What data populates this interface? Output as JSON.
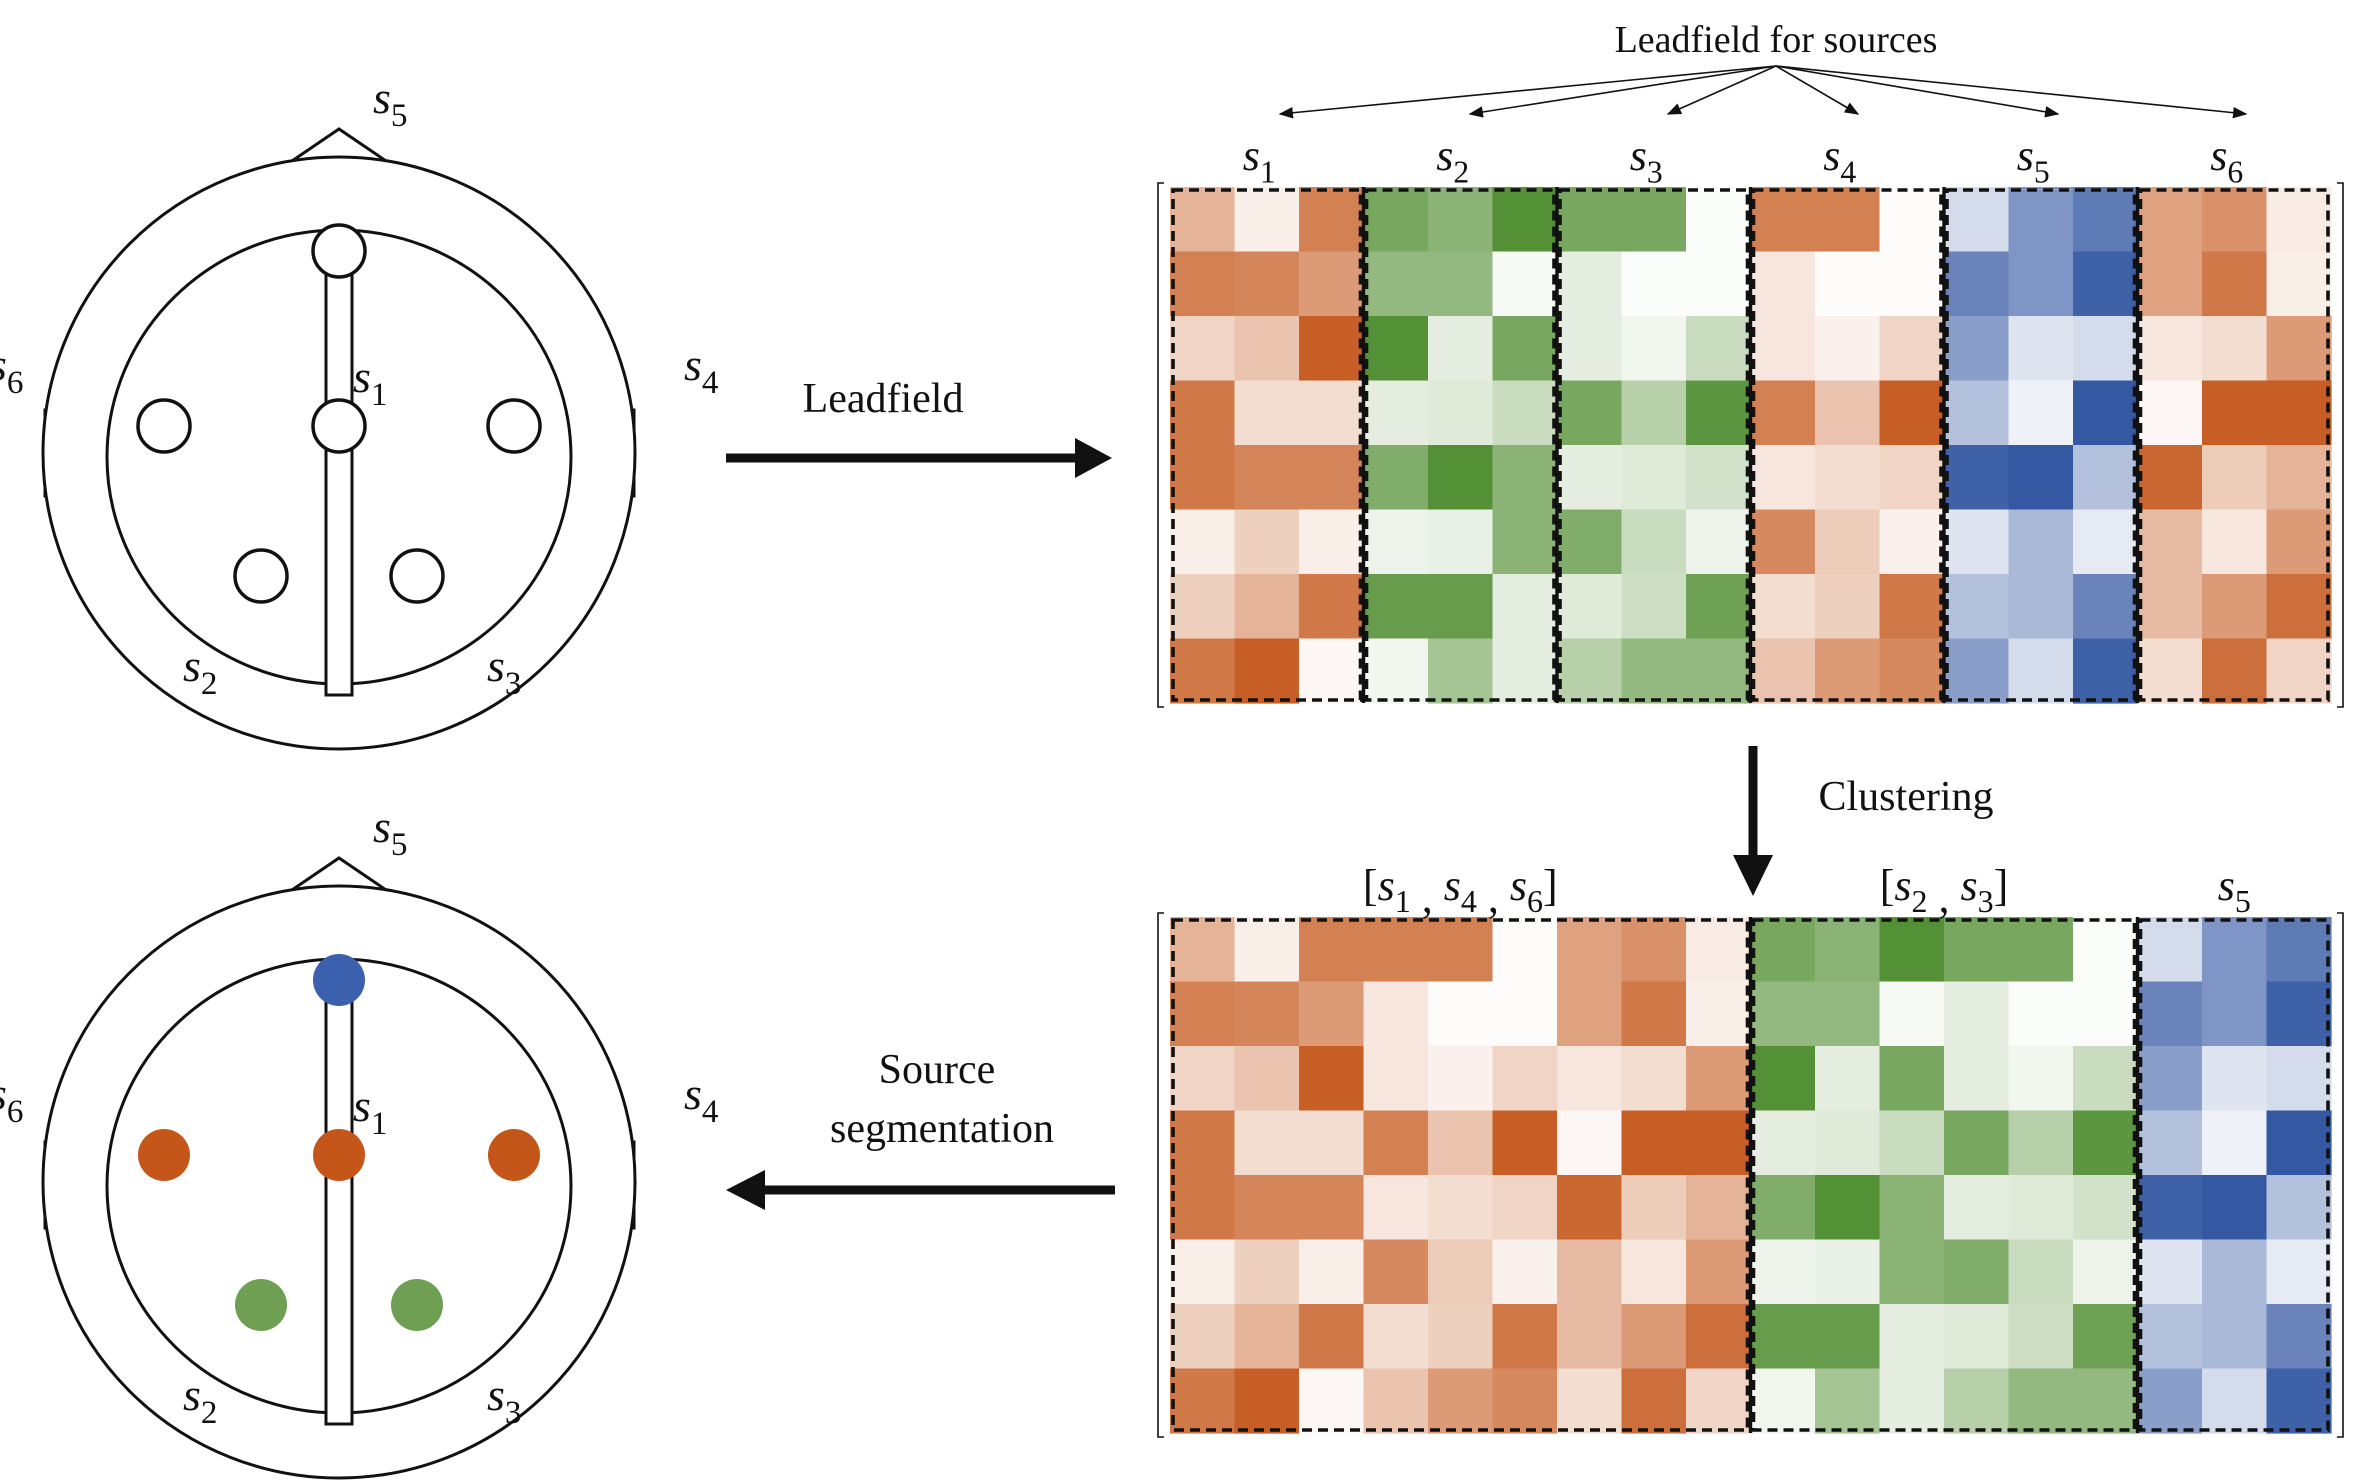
{
  "labels": {
    "leadfield_for_sources": "Leadfield for sources",
    "leadfield": "Leadfield",
    "clustering": "Clustering",
    "source_segmentation_line1": "Source",
    "source_segmentation_line2": "segmentation"
  },
  "source_symbol": "s",
  "sources": [
    "1",
    "2",
    "3",
    "4",
    "5",
    "6"
  ],
  "cluster_labels": [
    {
      "text": "[s1 , s4 , s6]",
      "subs": [
        "1",
        "4",
        "6"
      ]
    },
    {
      "text": "[s2 , s3]",
      "subs": [
        "2",
        "3"
      ]
    },
    {
      "text": "s5",
      "subs": [
        "5"
      ]
    }
  ],
  "colors": {
    "orange": "#c4561a",
    "green": "#4b8a2b",
    "blue": "#2a4f9e",
    "segmented_orange": "#c4561a",
    "segmented_green": "#6f9f52",
    "segmented_blue": "#3b60ad"
  },
  "clusters_assignment": {
    "1": "orange",
    "4": "orange",
    "6": "orange",
    "2": "green",
    "3": "green",
    "5": "blue"
  },
  "leadfield_matrix": {
    "1": [
      [
        0.45,
        0.1,
        0.75
      ],
      [
        0.75,
        0.72,
        0.6
      ],
      [
        0.25,
        0.35,
        0.95
      ],
      [
        0.8,
        0.2,
        0.2
      ],
      [
        0.8,
        0.72,
        0.72
      ],
      [
        0.1,
        0.28,
        0.1
      ],
      [
        0.28,
        0.45,
        0.8
      ],
      [
        0.8,
        0.95,
        0.05
      ]
    ],
    "2": [
      [
        0.75,
        0.65,
        0.95
      ],
      [
        0.6,
        0.6,
        0.05
      ],
      [
        0.95,
        0.15,
        0.75
      ],
      [
        0.15,
        0.18,
        0.3
      ],
      [
        0.7,
        0.95,
        0.65
      ],
      [
        0.1,
        0.12,
        0.65
      ],
      [
        0.85,
        0.85,
        0.15
      ],
      [
        0.08,
        0.5,
        0.15
      ]
    ],
    "3": [
      [
        0.75,
        0.75,
        0.02
      ],
      [
        0.15,
        0.02,
        0.02
      ],
      [
        0.15,
        0.08,
        0.3
      ],
      [
        0.75,
        0.4,
        0.9
      ],
      [
        0.15,
        0.18,
        0.25
      ],
      [
        0.7,
        0.3,
        0.1
      ],
      [
        0.18,
        0.28,
        0.8
      ],
      [
        0.4,
        0.6,
        0.6
      ]
    ],
    "4": [
      [
        0.75,
        0.75,
        0.02
      ],
      [
        0.15,
        0.02,
        0.02
      ],
      [
        0.15,
        0.08,
        0.25
      ],
      [
        0.75,
        0.35,
        0.95
      ],
      [
        0.15,
        0.2,
        0.25
      ],
      [
        0.7,
        0.3,
        0.08
      ],
      [
        0.2,
        0.28,
        0.8
      ],
      [
        0.35,
        0.6,
        0.7
      ]
    ],
    "5": [
      [
        0.2,
        0.6,
        0.75
      ],
      [
        0.7,
        0.6,
        0.9
      ],
      [
        0.55,
        0.15,
        0.2
      ],
      [
        0.35,
        0.08,
        0.95
      ],
      [
        0.9,
        0.95,
        0.35
      ],
      [
        0.15,
        0.4,
        0.12
      ],
      [
        0.35,
        0.4,
        0.7
      ],
      [
        0.55,
        0.2,
        0.9
      ]
    ],
    "6": [
      [
        0.55,
        0.65,
        0.12
      ],
      [
        0.55,
        0.8,
        0.1
      ],
      [
        0.15,
        0.2,
        0.6
      ],
      [
        0.05,
        0.95,
        0.95
      ],
      [
        0.9,
        0.3,
        0.45
      ],
      [
        0.4,
        0.15,
        0.6
      ],
      [
        0.4,
        0.6,
        0.85
      ],
      [
        0.2,
        0.85,
        0.25
      ]
    ]
  }
}
